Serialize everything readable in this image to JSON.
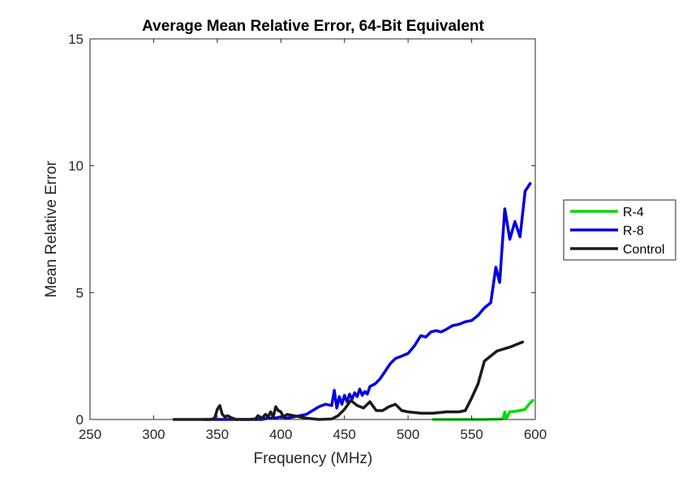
{
  "chart_data": {
    "type": "line",
    "title": "Average Mean Relative Error, 64-Bit Equivalent",
    "xlabel": "Frequency (MHz)",
    "ylabel": "Mean Relative Error",
    "xlim": [
      250,
      600
    ],
    "ylim": [
      0,
      15
    ],
    "xticks": [
      "250",
      "300",
      "350",
      "400",
      "450",
      "500",
      "550",
      "600"
    ],
    "yticks": [
      "0",
      "5",
      "10",
      "15"
    ],
    "grid": false,
    "legend_position": "outside-right",
    "series": [
      {
        "name": "R-4",
        "color": "#00dd00",
        "x": [
          520,
          560,
          574,
          575,
          576,
          577,
          578,
          580,
          584,
          588,
          592,
          595,
          598
        ],
        "y": [
          0.0,
          0.0,
          0.02,
          0.1,
          0.3,
          0.05,
          0.1,
          0.3,
          0.32,
          0.35,
          0.4,
          0.6,
          0.75
        ]
      },
      {
        "name": "R-8",
        "color": "#0000dd",
        "x": [
          340,
          385,
          390,
          395,
          400,
          405,
          410,
          415,
          420,
          425,
          430,
          435,
          440,
          442,
          444,
          446,
          448,
          450,
          452,
          454,
          456,
          458,
          460,
          462,
          464,
          466,
          468,
          470,
          474,
          478,
          482,
          486,
          490,
          495,
          500,
          505,
          510,
          514,
          518,
          522,
          526,
          530,
          535,
          540,
          545,
          550,
          555,
          560,
          565,
          569,
          572,
          576,
          580,
          584,
          588,
          592,
          596
        ],
        "y": [
          0.0,
          0.0,
          0.05,
          0.05,
          0.1,
          0.05,
          0.1,
          0.15,
          0.2,
          0.35,
          0.5,
          0.6,
          0.55,
          1.15,
          0.45,
          0.9,
          0.6,
          0.95,
          0.7,
          1.0,
          0.8,
          1.05,
          0.9,
          1.2,
          0.95,
          1.1,
          1.0,
          1.3,
          1.4,
          1.6,
          1.9,
          2.2,
          2.4,
          2.5,
          2.6,
          2.9,
          3.3,
          3.25,
          3.45,
          3.5,
          3.45,
          3.55,
          3.7,
          3.75,
          3.85,
          3.9,
          4.1,
          4.4,
          4.6,
          6.0,
          5.4,
          8.3,
          7.1,
          7.8,
          7.2,
          9.0,
          9.3
        ]
      },
      {
        "name": "Control",
        "color": "#1a1a1a",
        "x": [
          316,
          345,
          348,
          350,
          352,
          354,
          356,
          358,
          360,
          362,
          365,
          370,
          375,
          380,
          382,
          385,
          388,
          390,
          392,
          394,
          396,
          398,
          400,
          402,
          405,
          410,
          415,
          420,
          430,
          440,
          445,
          450,
          455,
          460,
          465,
          470,
          475,
          480,
          485,
          490,
          495,
          500,
          510,
          520,
          530,
          540,
          545,
          550,
          555,
          560,
          570,
          580,
          590
        ],
        "y": [
          0.0,
          0.0,
          0.05,
          0.4,
          0.55,
          0.2,
          0.1,
          0.15,
          0.1,
          0.05,
          0.0,
          0.0,
          0.0,
          0.02,
          0.15,
          0.05,
          0.2,
          0.1,
          0.3,
          0.1,
          0.5,
          0.35,
          0.3,
          0.1,
          0.2,
          0.15,
          0.1,
          0.05,
          0.0,
          0.02,
          0.15,
          0.4,
          0.75,
          0.55,
          0.45,
          0.7,
          0.35,
          0.35,
          0.5,
          0.6,
          0.35,
          0.3,
          0.25,
          0.25,
          0.3,
          0.3,
          0.35,
          0.85,
          1.4,
          2.3,
          2.7,
          2.85,
          3.05
        ]
      }
    ]
  }
}
